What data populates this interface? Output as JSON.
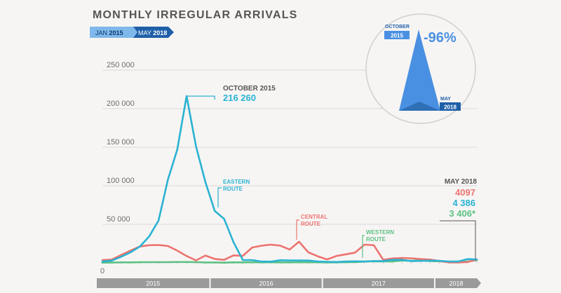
{
  "title": "MONTHLY IRREGULAR ARRIVALS",
  "range": {
    "start_month": "JAN",
    "start_year": "2015",
    "end_month": "MAY",
    "end_year": "2018"
  },
  "colors": {
    "eastern": "#2ab3d2",
    "central": "#ec7470",
    "western": "#5dc183",
    "axis_bar": "#9a9a9a",
    "grid": "#d8d8d8",
    "inset_blue": "#4a90e2",
    "inset_dark": "#2f6fb6"
  },
  "chart_data": {
    "type": "line",
    "title": "MONTHLY IRREGULAR ARRIVALS",
    "ylim": [
      0,
      250000
    ],
    "yticks": [
      0,
      50000,
      100000,
      150000,
      200000,
      250000
    ],
    "ytick_labels": [
      "0",
      "50 000",
      "100 000",
      "150 000",
      "200 000",
      "250 000"
    ],
    "x_year_labels": [
      "2015",
      "2016",
      "2017",
      "2018"
    ],
    "x_months": 41,
    "series": [
      {
        "name": "Eastern route",
        "label": "EASTERN ROUTE",
        "values": [
          1700,
          2900,
          7900,
          13600,
          21100,
          34400,
          54900,
          107800,
          147100,
          216260,
          151100,
          104800,
          67400,
          57100,
          27000,
          3650,
          3600,
          1720,
          1550,
          3450,
          3080,
          3050,
          2970,
          1850,
          1390,
          1090,
          1690,
          2030,
          1710,
          2370,
          2350,
          3920,
          3800,
          2340,
          2550,
          2950,
          2750,
          1700,
          1700,
          4900,
          4386
        ]
      },
      {
        "name": "Central route",
        "label": "CENTRAL ROUTE",
        "values": [
          3500,
          4300,
          10200,
          16000,
          21200,
          22900,
          23200,
          21900,
          15900,
          8900,
          3200,
          9500,
          5100,
          3900,
          9700,
          9100,
          19900,
          22300,
          23600,
          22400,
          17300,
          27400,
          13600,
          8500,
          4500,
          8900,
          11100,
          13400,
          23600,
          22900,
          3900,
          5700,
          6300,
          5900,
          4900,
          4300,
          2500,
          500,
          500,
          1100,
          4097
        ]
      },
      {
        "name": "Western route",
        "label": "WESTERN ROUTE",
        "values": [
          300,
          400,
          600,
          600,
          800,
          900,
          900,
          900,
          1100,
          1100,
          900,
          500,
          500,
          300,
          600,
          600,
          800,
          600,
          700,
          600,
          600,
          800,
          700,
          700,
          500,
          600,
          800,
          900,
          1600,
          2000,
          1900,
          1800,
          3000,
          2600,
          3200,
          2300,
          2000,
          1100,
          800,
          1800,
          3406
        ]
      }
    ],
    "annotations": [
      {
        "label": "OCTOBER 2015",
        "value_text": "216 260",
        "series": "Eastern route"
      }
    ],
    "latest": {
      "label": "MAY 2018",
      "values": [
        {
          "text": "4097",
          "series": "Central route"
        },
        {
          "text": "4 386",
          "series": "Eastern route"
        },
        {
          "text": "3 406*",
          "series": "Western route"
        }
      ]
    },
    "inset": {
      "change": "-96%",
      "start_label_month": "OCTOBER",
      "start_label_year": "2015",
      "end_label_month": "MAY",
      "end_label_year": "2018"
    }
  }
}
